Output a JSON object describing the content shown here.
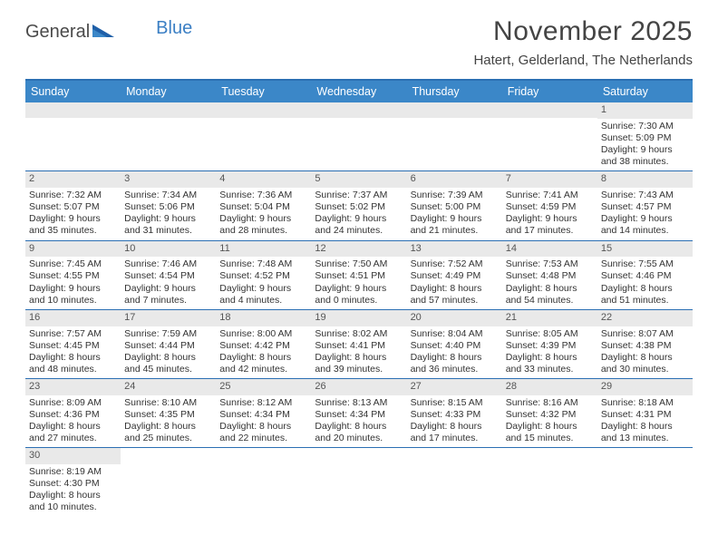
{
  "logo": {
    "part1": "General",
    "part2": "Blue"
  },
  "title": "November 2025",
  "location": "Hatert, Gelderland, The Netherlands",
  "colors": {
    "header_bg": "#3b87c8",
    "border": "#2b6fb3",
    "daynum_bg": "#e9e9e9",
    "text": "#333333",
    "logo_blue": "#3b7fc4"
  },
  "daynames": [
    "Sunday",
    "Monday",
    "Tuesday",
    "Wednesday",
    "Thursday",
    "Friday",
    "Saturday"
  ],
  "weeks": [
    [
      {
        "n": "",
        "sr": "",
        "ss": "",
        "dl1": "",
        "dl2": ""
      },
      {
        "n": "",
        "sr": "",
        "ss": "",
        "dl1": "",
        "dl2": ""
      },
      {
        "n": "",
        "sr": "",
        "ss": "",
        "dl1": "",
        "dl2": ""
      },
      {
        "n": "",
        "sr": "",
        "ss": "",
        "dl1": "",
        "dl2": ""
      },
      {
        "n": "",
        "sr": "",
        "ss": "",
        "dl1": "",
        "dl2": ""
      },
      {
        "n": "",
        "sr": "",
        "ss": "",
        "dl1": "",
        "dl2": ""
      },
      {
        "n": "1",
        "sr": "Sunrise: 7:30 AM",
        "ss": "Sunset: 5:09 PM",
        "dl1": "Daylight: 9 hours",
        "dl2": "and 38 minutes."
      }
    ],
    [
      {
        "n": "2",
        "sr": "Sunrise: 7:32 AM",
        "ss": "Sunset: 5:07 PM",
        "dl1": "Daylight: 9 hours",
        "dl2": "and 35 minutes."
      },
      {
        "n": "3",
        "sr": "Sunrise: 7:34 AM",
        "ss": "Sunset: 5:06 PM",
        "dl1": "Daylight: 9 hours",
        "dl2": "and 31 minutes."
      },
      {
        "n": "4",
        "sr": "Sunrise: 7:36 AM",
        "ss": "Sunset: 5:04 PM",
        "dl1": "Daylight: 9 hours",
        "dl2": "and 28 minutes."
      },
      {
        "n": "5",
        "sr": "Sunrise: 7:37 AM",
        "ss": "Sunset: 5:02 PM",
        "dl1": "Daylight: 9 hours",
        "dl2": "and 24 minutes."
      },
      {
        "n": "6",
        "sr": "Sunrise: 7:39 AM",
        "ss": "Sunset: 5:00 PM",
        "dl1": "Daylight: 9 hours",
        "dl2": "and 21 minutes."
      },
      {
        "n": "7",
        "sr": "Sunrise: 7:41 AM",
        "ss": "Sunset: 4:59 PM",
        "dl1": "Daylight: 9 hours",
        "dl2": "and 17 minutes."
      },
      {
        "n": "8",
        "sr": "Sunrise: 7:43 AM",
        "ss": "Sunset: 4:57 PM",
        "dl1": "Daylight: 9 hours",
        "dl2": "and 14 minutes."
      }
    ],
    [
      {
        "n": "9",
        "sr": "Sunrise: 7:45 AM",
        "ss": "Sunset: 4:55 PM",
        "dl1": "Daylight: 9 hours",
        "dl2": "and 10 minutes."
      },
      {
        "n": "10",
        "sr": "Sunrise: 7:46 AM",
        "ss": "Sunset: 4:54 PM",
        "dl1": "Daylight: 9 hours",
        "dl2": "and 7 minutes."
      },
      {
        "n": "11",
        "sr": "Sunrise: 7:48 AM",
        "ss": "Sunset: 4:52 PM",
        "dl1": "Daylight: 9 hours",
        "dl2": "and 4 minutes."
      },
      {
        "n": "12",
        "sr": "Sunrise: 7:50 AM",
        "ss": "Sunset: 4:51 PM",
        "dl1": "Daylight: 9 hours",
        "dl2": "and 0 minutes."
      },
      {
        "n": "13",
        "sr": "Sunrise: 7:52 AM",
        "ss": "Sunset: 4:49 PM",
        "dl1": "Daylight: 8 hours",
        "dl2": "and 57 minutes."
      },
      {
        "n": "14",
        "sr": "Sunrise: 7:53 AM",
        "ss": "Sunset: 4:48 PM",
        "dl1": "Daylight: 8 hours",
        "dl2": "and 54 minutes."
      },
      {
        "n": "15",
        "sr": "Sunrise: 7:55 AM",
        "ss": "Sunset: 4:46 PM",
        "dl1": "Daylight: 8 hours",
        "dl2": "and 51 minutes."
      }
    ],
    [
      {
        "n": "16",
        "sr": "Sunrise: 7:57 AM",
        "ss": "Sunset: 4:45 PM",
        "dl1": "Daylight: 8 hours",
        "dl2": "and 48 minutes."
      },
      {
        "n": "17",
        "sr": "Sunrise: 7:59 AM",
        "ss": "Sunset: 4:44 PM",
        "dl1": "Daylight: 8 hours",
        "dl2": "and 45 minutes."
      },
      {
        "n": "18",
        "sr": "Sunrise: 8:00 AM",
        "ss": "Sunset: 4:42 PM",
        "dl1": "Daylight: 8 hours",
        "dl2": "and 42 minutes."
      },
      {
        "n": "19",
        "sr": "Sunrise: 8:02 AM",
        "ss": "Sunset: 4:41 PM",
        "dl1": "Daylight: 8 hours",
        "dl2": "and 39 minutes."
      },
      {
        "n": "20",
        "sr": "Sunrise: 8:04 AM",
        "ss": "Sunset: 4:40 PM",
        "dl1": "Daylight: 8 hours",
        "dl2": "and 36 minutes."
      },
      {
        "n": "21",
        "sr": "Sunrise: 8:05 AM",
        "ss": "Sunset: 4:39 PM",
        "dl1": "Daylight: 8 hours",
        "dl2": "and 33 minutes."
      },
      {
        "n": "22",
        "sr": "Sunrise: 8:07 AM",
        "ss": "Sunset: 4:38 PM",
        "dl1": "Daylight: 8 hours",
        "dl2": "and 30 minutes."
      }
    ],
    [
      {
        "n": "23",
        "sr": "Sunrise: 8:09 AM",
        "ss": "Sunset: 4:36 PM",
        "dl1": "Daylight: 8 hours",
        "dl2": "and 27 minutes."
      },
      {
        "n": "24",
        "sr": "Sunrise: 8:10 AM",
        "ss": "Sunset: 4:35 PM",
        "dl1": "Daylight: 8 hours",
        "dl2": "and 25 minutes."
      },
      {
        "n": "25",
        "sr": "Sunrise: 8:12 AM",
        "ss": "Sunset: 4:34 PM",
        "dl1": "Daylight: 8 hours",
        "dl2": "and 22 minutes."
      },
      {
        "n": "26",
        "sr": "Sunrise: 8:13 AM",
        "ss": "Sunset: 4:34 PM",
        "dl1": "Daylight: 8 hours",
        "dl2": "and 20 minutes."
      },
      {
        "n": "27",
        "sr": "Sunrise: 8:15 AM",
        "ss": "Sunset: 4:33 PM",
        "dl1": "Daylight: 8 hours",
        "dl2": "and 17 minutes."
      },
      {
        "n": "28",
        "sr": "Sunrise: 8:16 AM",
        "ss": "Sunset: 4:32 PM",
        "dl1": "Daylight: 8 hours",
        "dl2": "and 15 minutes."
      },
      {
        "n": "29",
        "sr": "Sunrise: 8:18 AM",
        "ss": "Sunset: 4:31 PM",
        "dl1": "Daylight: 8 hours",
        "dl2": "and 13 minutes."
      }
    ],
    [
      {
        "n": "30",
        "sr": "Sunrise: 8:19 AM",
        "ss": "Sunset: 4:30 PM",
        "dl1": "Daylight: 8 hours",
        "dl2": "and 10 minutes."
      },
      {
        "n": "",
        "sr": "",
        "ss": "",
        "dl1": "",
        "dl2": ""
      },
      {
        "n": "",
        "sr": "",
        "ss": "",
        "dl1": "",
        "dl2": ""
      },
      {
        "n": "",
        "sr": "",
        "ss": "",
        "dl1": "",
        "dl2": ""
      },
      {
        "n": "",
        "sr": "",
        "ss": "",
        "dl1": "",
        "dl2": ""
      },
      {
        "n": "",
        "sr": "",
        "ss": "",
        "dl1": "",
        "dl2": ""
      },
      {
        "n": "",
        "sr": "",
        "ss": "",
        "dl1": "",
        "dl2": ""
      }
    ]
  ]
}
